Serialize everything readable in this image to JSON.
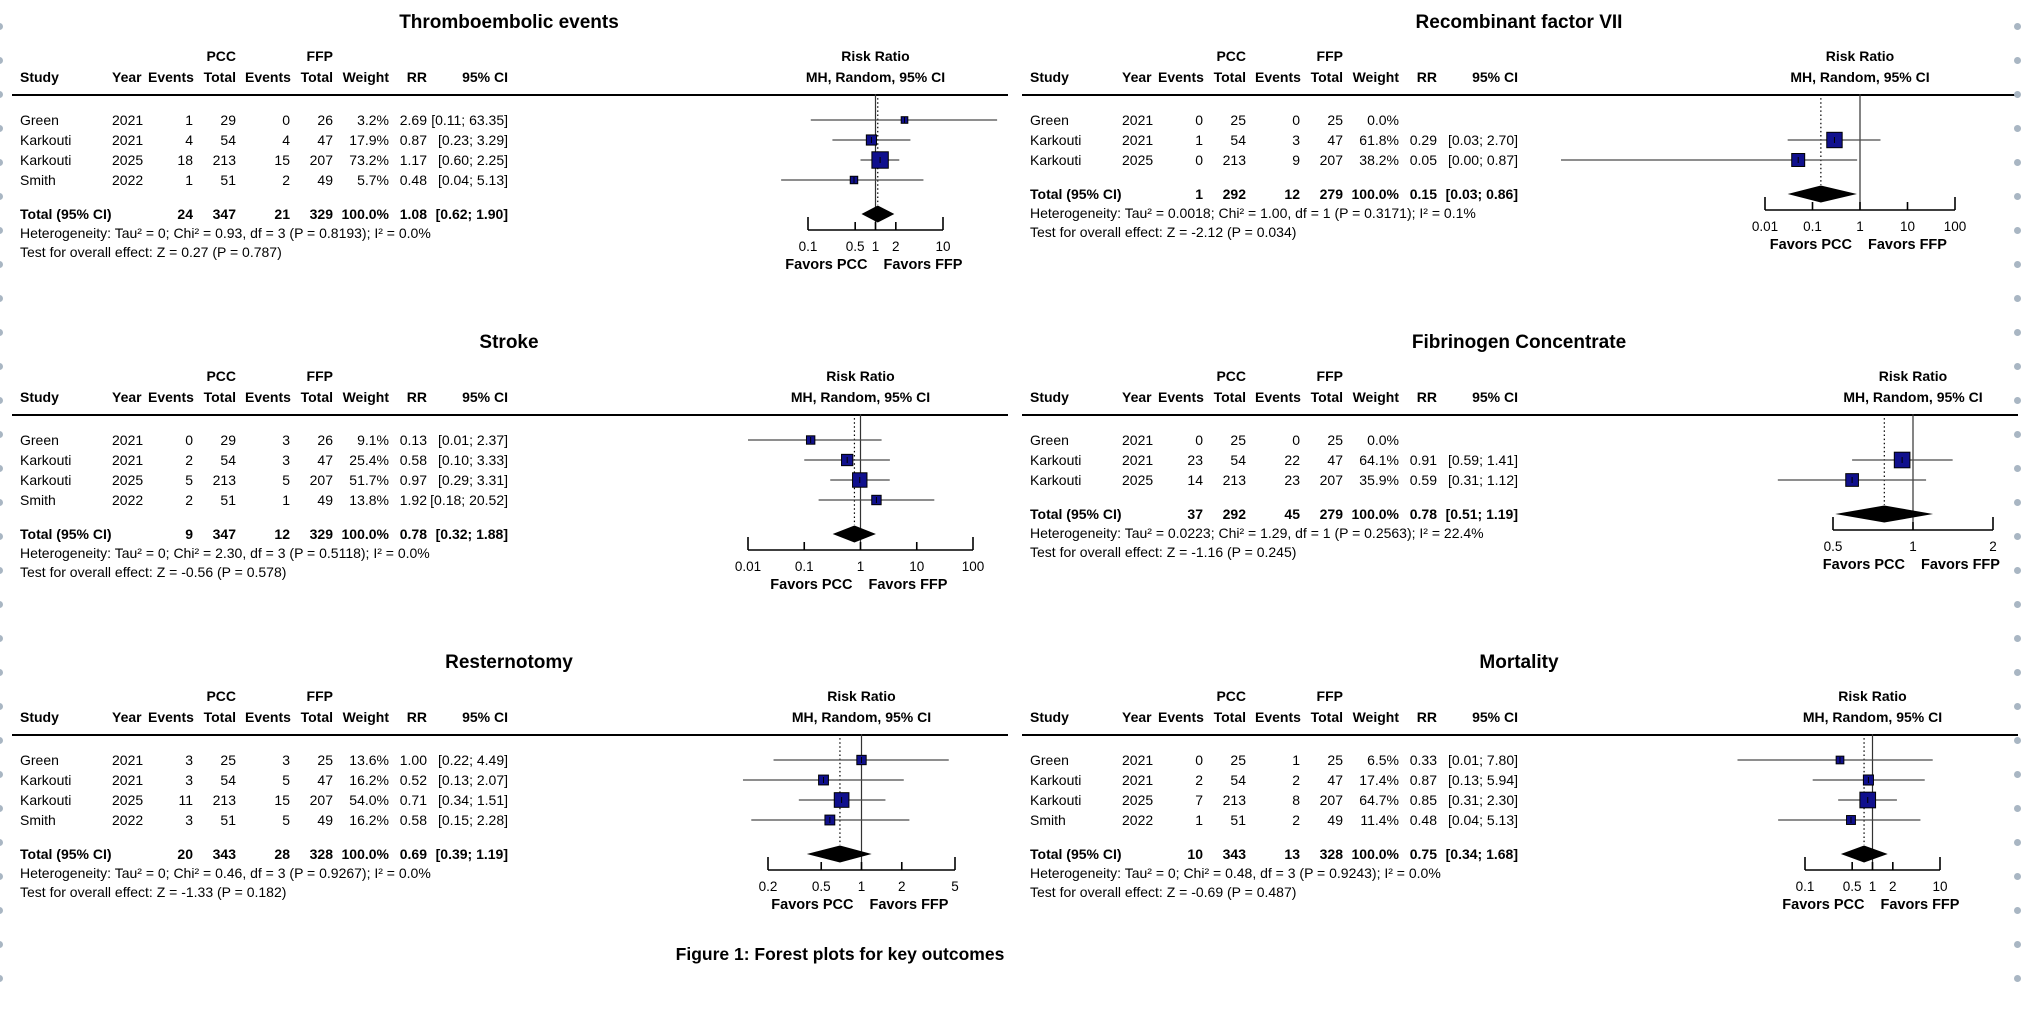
{
  "caption": "Figure 1: Forest plots for key outcomes",
  "table_headers": {
    "group1": "PCC",
    "group2": "FFP",
    "cols": [
      "Study",
      "Year",
      "Events",
      "Total",
      "Events",
      "Total",
      "Weight",
      "RR",
      "95% CI"
    ],
    "plot_header_line1": "Risk Ratio",
    "plot_header_line2": "MH, Random, 95% CI"
  },
  "total_label": "Total (95% CI)",
  "axis_footer": {
    "left": "Favors PCC",
    "right": "Favors FFP"
  },
  "colors": {
    "marker": "#10108d",
    "diamond": "#000000",
    "ci_line": "#4a4a4a",
    "edge_dots": "#a9b6c3"
  },
  "chart_data": [
    {
      "type": "forest",
      "title": "Thromboembolic events",
      "axis_ticks": [
        0.1,
        0.5,
        1,
        2,
        10
      ],
      "studies": [
        {
          "study": "Green",
          "year": "2021",
          "events_pcc": 1,
          "total_pcc": 29,
          "events_ffp": 0,
          "total_ffp": 26,
          "weight": "3.2%",
          "rr": "2.69",
          "ci_lo": 0.11,
          "ci_hi": 63.35,
          "ci": "[0.11; 63.35]"
        },
        {
          "study": "Karkouti",
          "year": "2021",
          "events_pcc": 4,
          "total_pcc": 54,
          "events_ffp": 4,
          "total_ffp": 47,
          "weight": "17.9%",
          "rr": "0.87",
          "ci_lo": 0.23,
          "ci_hi": 3.29,
          "ci": "[0.23;  3.29]"
        },
        {
          "study": "Karkouti",
          "year": "2025",
          "events_pcc": 18,
          "total_pcc": 213,
          "events_ffp": 15,
          "total_ffp": 207,
          "weight": "73.2%",
          "rr": "1.17",
          "ci_lo": 0.6,
          "ci_hi": 2.25,
          "ci": "[0.60;  2.25]"
        },
        {
          "study": "Smith",
          "year": "2022",
          "events_pcc": 1,
          "total_pcc": 51,
          "events_ffp": 2,
          "total_ffp": 49,
          "weight": "5.7%",
          "rr": "0.48",
          "ci_lo": 0.04,
          "ci_hi": 5.13,
          "ci": "[0.04;  5.13]"
        }
      ],
      "total": {
        "events_pcc": 24,
        "total_pcc": 347,
        "events_ffp": 21,
        "total_ffp": 329,
        "weight": "100.0%",
        "rr": "1.08",
        "ci_lo": 0.62,
        "ci_hi": 1.9,
        "ci": "[0.62;  1.90]"
      },
      "heterogeneity": "Heterogeneity: Tau² = 0; Chi² = 0.93, df = 3 (P = 0.8193); I² = 0.0%",
      "overall_test": "Test for overall effect: Z = 0.27 (P = 0.787)"
    },
    {
      "type": "forest",
      "title": "Recombinant factor VII",
      "axis_ticks": [
        0.01,
        0.1,
        1,
        10,
        100
      ],
      "studies": [
        {
          "study": "Green",
          "year": "2021",
          "events_pcc": 0,
          "total_pcc": 25,
          "events_ffp": 0,
          "total_ffp": 25,
          "weight": "0.0%",
          "rr": null,
          "ci_lo": null,
          "ci_hi": null,
          "ci": ""
        },
        {
          "study": "Karkouti",
          "year": "2021",
          "events_pcc": 1,
          "total_pcc": 54,
          "events_ffp": 3,
          "total_ffp": 47,
          "weight": "61.8%",
          "rr": "0.29",
          "ci_lo": 0.03,
          "ci_hi": 2.7,
          "ci": "[0.03; 2.70]"
        },
        {
          "study": "Karkouti",
          "year": "2025",
          "events_pcc": 0,
          "total_pcc": 213,
          "events_ffp": 9,
          "total_ffp": 207,
          "weight": "38.2%",
          "rr": "0.05",
          "ci_lo": 0.0,
          "ci_hi": 0.87,
          "ci": "[0.00; 0.87]"
        }
      ],
      "total": {
        "events_pcc": 1,
        "total_pcc": 292,
        "events_ffp": 12,
        "total_ffp": 279,
        "weight": "100.0%",
        "rr": "0.15",
        "ci_lo": 0.03,
        "ci_hi": 0.86,
        "ci": "[0.03; 0.86]"
      },
      "heterogeneity": "Heterogeneity: Tau² = 0.0018; Chi² = 1.00, df = 1 (P = 0.3171); I² = 0.1%",
      "overall_test": "Test for overall effect: Z = -2.12 (P = 0.034)"
    },
    {
      "type": "forest",
      "title": "Stroke",
      "axis_ticks": [
        0.01,
        0.1,
        1,
        10,
        100
      ],
      "studies": [
        {
          "study": "Green",
          "year": "2021",
          "events_pcc": 0,
          "total_pcc": 29,
          "events_ffp": 3,
          "total_ffp": 26,
          "weight": "9.1%",
          "rr": "0.13",
          "ci_lo": 0.01,
          "ci_hi": 2.37,
          "ci": "[0.01;  2.37]"
        },
        {
          "study": "Karkouti",
          "year": "2021",
          "events_pcc": 2,
          "total_pcc": 54,
          "events_ffp": 3,
          "total_ffp": 47,
          "weight": "25.4%",
          "rr": "0.58",
          "ci_lo": 0.1,
          "ci_hi": 3.33,
          "ci": "[0.10;  3.33]"
        },
        {
          "study": "Karkouti",
          "year": "2025",
          "events_pcc": 5,
          "total_pcc": 213,
          "events_ffp": 5,
          "total_ffp": 207,
          "weight": "51.7%",
          "rr": "0.97",
          "ci_lo": 0.29,
          "ci_hi": 3.31,
          "ci": "[0.29;  3.31]"
        },
        {
          "study": "Smith",
          "year": "2022",
          "events_pcc": 2,
          "total_pcc": 51,
          "events_ffp": 1,
          "total_ffp": 49,
          "weight": "13.8%",
          "rr": "1.92",
          "ci_lo": 0.18,
          "ci_hi": 20.52,
          "ci": "[0.18; 20.52]"
        }
      ],
      "total": {
        "events_pcc": 9,
        "total_pcc": 347,
        "events_ffp": 12,
        "total_ffp": 329,
        "weight": "100.0%",
        "rr": "0.78",
        "ci_lo": 0.32,
        "ci_hi": 1.88,
        "ci": "[0.32;  1.88]"
      },
      "heterogeneity": "Heterogeneity: Tau² = 0; Chi² = 2.30, df = 3 (P = 0.5118); I² = 0.0%",
      "overall_test": "Test for overall effect: Z = -0.56 (P = 0.578)"
    },
    {
      "type": "forest",
      "title": "Fibrinogen Concentrate",
      "axis_ticks": [
        0.5,
        1,
        2
      ],
      "studies": [
        {
          "study": "Green",
          "year": "2021",
          "events_pcc": 0,
          "total_pcc": 25,
          "events_ffp": 0,
          "total_ffp": 25,
          "weight": "0.0%",
          "rr": null,
          "ci_lo": null,
          "ci_hi": null,
          "ci": ""
        },
        {
          "study": "Karkouti",
          "year": "2021",
          "events_pcc": 23,
          "total_pcc": 54,
          "events_ffp": 22,
          "total_ffp": 47,
          "weight": "64.1%",
          "rr": "0.91",
          "ci_lo": 0.59,
          "ci_hi": 1.41,
          "ci": "[0.59; 1.41]"
        },
        {
          "study": "Karkouti",
          "year": "2025",
          "events_pcc": 14,
          "total_pcc": 213,
          "events_ffp": 23,
          "total_ffp": 207,
          "weight": "35.9%",
          "rr": "0.59",
          "ci_lo": 0.31,
          "ci_hi": 1.12,
          "ci": "[0.31; 1.12]"
        }
      ],
      "total": {
        "events_pcc": 37,
        "total_pcc": 292,
        "events_ffp": 45,
        "total_ffp": 279,
        "weight": "100.0%",
        "rr": "0.78",
        "ci_lo": 0.51,
        "ci_hi": 1.19,
        "ci": "[0.51; 1.19]"
      },
      "heterogeneity": "Heterogeneity: Tau² = 0.0223; Chi² = 1.29, df = 1 (P = 0.2563); I² = 22.4%",
      "overall_test": "Test for overall effect: Z = -1.16 (P = 0.245)"
    },
    {
      "type": "forest",
      "title": "Resternotomy",
      "axis_ticks": [
        0.2,
        0.5,
        1,
        2,
        5
      ],
      "studies": [
        {
          "study": "Green",
          "year": "2021",
          "events_pcc": 3,
          "total_pcc": 25,
          "events_ffp": 3,
          "total_ffp": 25,
          "weight": "13.6%",
          "rr": "1.00",
          "ci_lo": 0.22,
          "ci_hi": 4.49,
          "ci": "[0.22; 4.49]"
        },
        {
          "study": "Karkouti",
          "year": "2021",
          "events_pcc": 3,
          "total_pcc": 54,
          "events_ffp": 5,
          "total_ffp": 47,
          "weight": "16.2%",
          "rr": "0.52",
          "ci_lo": 0.13,
          "ci_hi": 2.07,
          "ci": "[0.13; 2.07]"
        },
        {
          "study": "Karkouti",
          "year": "2025",
          "events_pcc": 11,
          "total_pcc": 213,
          "events_ffp": 15,
          "total_ffp": 207,
          "weight": "54.0%",
          "rr": "0.71",
          "ci_lo": 0.34,
          "ci_hi": 1.51,
          "ci": "[0.34; 1.51]"
        },
        {
          "study": "Smith",
          "year": "2022",
          "events_pcc": 3,
          "total_pcc": 51,
          "events_ffp": 5,
          "total_ffp": 49,
          "weight": "16.2%",
          "rr": "0.58",
          "ci_lo": 0.15,
          "ci_hi": 2.28,
          "ci": "[0.15; 2.28]"
        }
      ],
      "total": {
        "events_pcc": 20,
        "total_pcc": 343,
        "events_ffp": 28,
        "total_ffp": 328,
        "weight": "100.0%",
        "rr": "0.69",
        "ci_lo": 0.39,
        "ci_hi": 1.19,
        "ci": "[0.39; 1.19]"
      },
      "heterogeneity": "Heterogeneity: Tau² = 0; Chi² = 0.46, df = 3 (P = 0.9267); I² = 0.0%",
      "overall_test": "Test for overall effect: Z = -1.33 (P = 0.182)"
    },
    {
      "type": "forest",
      "title": "Mortality",
      "axis_ticks": [
        0.1,
        0.5,
        1,
        2,
        10
      ],
      "studies": [
        {
          "study": "Green",
          "year": "2021",
          "events_pcc": 0,
          "total_pcc": 25,
          "events_ffp": 1,
          "total_ffp": 25,
          "weight": "6.5%",
          "rr": "0.33",
          "ci_lo": 0.01,
          "ci_hi": 7.8,
          "ci": "[0.01; 7.80]"
        },
        {
          "study": "Karkouti",
          "year": "2021",
          "events_pcc": 2,
          "total_pcc": 54,
          "events_ffp": 2,
          "total_ffp": 47,
          "weight": "17.4%",
          "rr": "0.87",
          "ci_lo": 0.13,
          "ci_hi": 5.94,
          "ci": "[0.13; 5.94]"
        },
        {
          "study": "Karkouti",
          "year": "2025",
          "events_pcc": 7,
          "total_pcc": 213,
          "events_ffp": 8,
          "total_ffp": 207,
          "weight": "64.7%",
          "rr": "0.85",
          "ci_lo": 0.31,
          "ci_hi": 2.3,
          "ci": "[0.31; 2.30]"
        },
        {
          "study": "Smith",
          "year": "2022",
          "events_pcc": 1,
          "total_pcc": 51,
          "events_ffp": 2,
          "total_ffp": 49,
          "weight": "11.4%",
          "rr": "0.48",
          "ci_lo": 0.04,
          "ci_hi": 5.13,
          "ci": "[0.04; 5.13]"
        }
      ],
      "total": {
        "events_pcc": 10,
        "total_pcc": 343,
        "events_ffp": 13,
        "total_ffp": 328,
        "weight": "100.0%",
        "rr": "0.75",
        "ci_lo": 0.34,
        "ci_hi": 1.68,
        "ci": "[0.34; 1.68]"
      },
      "heterogeneity": "Heterogeneity: Tau² = 0; Chi² = 0.48, df = 3 (P = 0.9243); I² = 0.0%",
      "overall_test": "Test for overall effect: Z = -0.69 (P = 0.487)"
    }
  ]
}
